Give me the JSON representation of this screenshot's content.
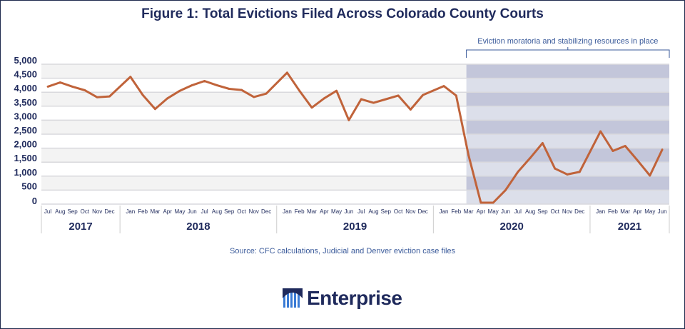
{
  "title": "Figure 1: Total Evictions Filed Across Colorado County Courts",
  "source": "Source: CFC calculations, Judicial and Denver eviction case files",
  "logo_text": "Enterprise",
  "chart_data": {
    "type": "line",
    "title": "Figure 1: Total Evictions Filed Across Colorado County Courts",
    "ylim": [
      0,
      5000
    ],
    "yticks": [
      "0",
      "500",
      "1,000",
      "1,500",
      "2,000",
      "2,500",
      "3,000",
      "3,500",
      "4,000",
      "4,500",
      "5,000"
    ],
    "grid": true,
    "line_color": "#c0633a",
    "years": [
      {
        "label": "2017",
        "months": [
          "Jul",
          "Aug",
          "Sep",
          "Oct",
          "Nov",
          "Dec"
        ]
      },
      {
        "label": "2018",
        "months": [
          "Jan",
          "Feb",
          "Mar",
          "Apr",
          "May",
          "Jun",
          "Jul",
          "Aug",
          "Sep",
          "Oct",
          "Nov",
          "Dec"
        ]
      },
      {
        "label": "2019",
        "months": [
          "Jan",
          "Feb",
          "Mar",
          "Apr",
          "May",
          "Jun",
          "Jul",
          "Aug",
          "Sep",
          "Oct",
          "Nov",
          "Dec"
        ]
      },
      {
        "label": "2020",
        "months": [
          "Jan",
          "Feb",
          "Mar",
          "Apr",
          "May",
          "Jun",
          "Jul",
          "Aug",
          "Sep",
          "Oct",
          "Nov",
          "Dec"
        ]
      },
      {
        "label": "2021",
        "months": [
          "Jan",
          "Feb",
          "Mar",
          "Apr",
          "May",
          "Jun"
        ]
      }
    ],
    "values": [
      4200,
      4350,
      4200,
      4070,
      3820,
      3850,
      4550,
      3900,
      3400,
      3780,
      4050,
      4250,
      4400,
      4250,
      4120,
      4080,
      3830,
      3950,
      4700,
      4050,
      3450,
      3780,
      4050,
      3000,
      3750,
      3620,
      3750,
      3880,
      3380,
      3900,
      4220,
      3880,
      1750,
      50,
      50,
      500,
      1150,
      1650,
      2180,
      1270,
      1060,
      1150,
      2600,
      1900,
      2080,
      1560,
      1020,
      1950
    ],
    "annotation": {
      "text": "Eviction moratoria and stabilizing resources in place",
      "start": "Mar 2020",
      "end": "Jun 2021"
    }
  }
}
